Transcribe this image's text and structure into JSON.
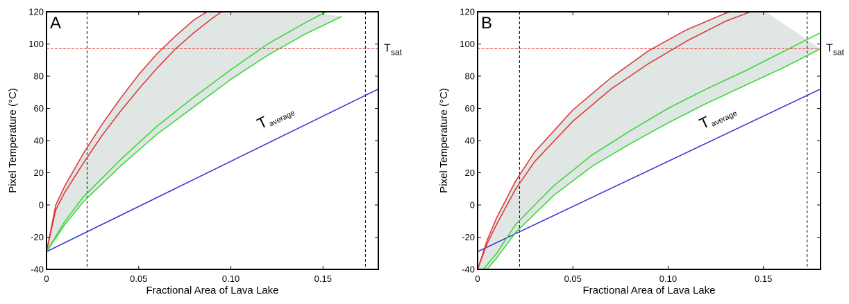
{
  "chart_data": [
    {
      "type": "line",
      "panel_label": "A",
      "xlabel": "Fractional Area of Lava Lake",
      "ylabel": "Pixel Temperature (°C)",
      "xlim": [
        0,
        0.18
      ],
      "ylim": [
        -40,
        120
      ],
      "xticks": [
        0,
        0.05,
        0.1,
        0.15
      ],
      "xtick_labels": [
        "0",
        "0.05",
        "0.10",
        "0.15"
      ],
      "yticks": [
        -40,
        -20,
        0,
        20,
        40,
        60,
        80,
        100,
        120
      ],
      "ytick_labels": [
        "-40",
        "-20",
        "0",
        "20",
        "40",
        "60",
        "80",
        "100",
        "120"
      ],
      "grid": false,
      "hlines": [
        {
          "y": 97,
          "color": "#e03030",
          "style": "dashed",
          "label_main": "T",
          "label_sub": "sat"
        }
      ],
      "vlines": [
        {
          "x": 0.022,
          "color": "#000000",
          "style": "dashed"
        },
        {
          "x": 0.173,
          "color": "#000000",
          "style": "dashed"
        }
      ],
      "shaded_region": {
        "color": "#dfe6e4",
        "between": [
          "Upper red",
          "Lower green"
        ]
      },
      "annotation": {
        "text_main": "T",
        "text_sub": "average",
        "at": [
          0.116,
          47
        ]
      },
      "series": [
        {
          "color": "#3a3ad6",
          "x": [
            0,
            0.18
          ],
          "y": [
            -29,
            72
          ]
        },
        {
          "color": "#e03a3a",
          "x": [
            0,
            0.005,
            0.01,
            0.02,
            0.03,
            0.04,
            0.05,
            0.06,
            0.07,
            0.08,
            0.09,
            0.1
          ],
          "y": [
            -29,
            0,
            12,
            32,
            50,
            66,
            81,
            94,
            105,
            115,
            122,
            128
          ]
        },
        {
          "color": "#e03a3a",
          "x": [
            0,
            0.005,
            0.01,
            0.02,
            0.03,
            0.04,
            0.05,
            0.06,
            0.07,
            0.08,
            0.09,
            0.1
          ],
          "y": [
            -29,
            -3,
            8,
            26,
            43,
            58,
            72,
            85,
            97,
            107,
            116,
            124
          ]
        },
        {
          "color": "#3cd83c",
          "x": [
            0,
            0.01,
            0.02,
            0.04,
            0.06,
            0.08,
            0.1,
            0.12,
            0.14,
            0.155
          ],
          "y": [
            -29,
            -10,
            5,
            28,
            49,
            67,
            84,
            100,
            113,
            122
          ]
        },
        {
          "color": "#3cd83c",
          "x": [
            0,
            0.01,
            0.02,
            0.04,
            0.06,
            0.08,
            0.1,
            0.12,
            0.14,
            0.16
          ],
          "y": [
            -29,
            -12,
            2,
            24,
            44,
            61,
            78,
            93,
            106,
            117
          ]
        }
      ]
    },
    {
      "type": "line",
      "panel_label": "B",
      "xlabel": "Fractional Area of Lava Lake",
      "ylabel": "Pixel Temperature (°C)",
      "xlim": [
        0,
        0.18
      ],
      "ylim": [
        -40,
        120
      ],
      "xticks": [
        0,
        0.05,
        0.1,
        0.15
      ],
      "xtick_labels": [
        "0",
        "0.05",
        "0.10",
        "0.15"
      ],
      "yticks": [
        -40,
        -20,
        0,
        20,
        40,
        60,
        80,
        100,
        120
      ],
      "ytick_labels": [
        "-40",
        "-20",
        "0",
        "20",
        "40",
        "60",
        "80",
        "100",
        "120"
      ],
      "grid": false,
      "hlines": [
        {
          "y": 97,
          "color": "#e03030",
          "style": "dashed",
          "label_main": "T",
          "label_sub": "sat"
        }
      ],
      "vlines": [
        {
          "x": 0.022,
          "color": "#000000",
          "style": "dashed"
        },
        {
          "x": 0.173,
          "color": "#000000",
          "style": "dashed"
        }
      ],
      "shaded_region": {
        "color": "#dfe6e4",
        "between": [
          "Upper red",
          "Lower green"
        ]
      },
      "annotation": {
        "text_main": "T",
        "text_sub": "average",
        "at": [
          0.118,
          47
        ]
      },
      "series": [
        {
          "color": "#3a3ad6",
          "x": [
            0,
            0.18
          ],
          "y": [
            -29,
            72
          ]
        },
        {
          "color": "#e03a3a",
          "x": [
            0,
            0.005,
            0.01,
            0.02,
            0.03,
            0.05,
            0.07,
            0.09,
            0.11,
            0.13,
            0.145
          ],
          "y": [
            -40,
            -22,
            -8,
            15,
            33,
            59,
            79,
            96,
            109,
            119,
            125
          ]
        },
        {
          "color": "#e03a3a",
          "x": [
            0,
            0.005,
            0.01,
            0.02,
            0.03,
            0.05,
            0.07,
            0.09,
            0.11,
            0.13,
            0.15
          ],
          "y": [
            -40,
            -24,
            -12,
            10,
            27,
            52,
            72,
            88,
            102,
            114,
            123
          ]
        },
        {
          "color": "#3cd83c",
          "x": [
            0.003,
            0.01,
            0.02,
            0.04,
            0.06,
            0.08,
            0.1,
            0.12,
            0.14,
            0.16,
            0.18
          ],
          "y": [
            -40,
            -30,
            -12,
            12,
            31,
            46,
            60,
            72,
            83,
            95,
            107
          ]
        },
        {
          "color": "#3cd83c",
          "x": [
            0.005,
            0.01,
            0.02,
            0.04,
            0.06,
            0.08,
            0.1,
            0.12,
            0.14,
            0.16,
            0.18
          ],
          "y": [
            -40,
            -33,
            -17,
            6,
            24,
            38,
            51,
            63,
            74,
            85,
            97
          ]
        }
      ]
    }
  ]
}
